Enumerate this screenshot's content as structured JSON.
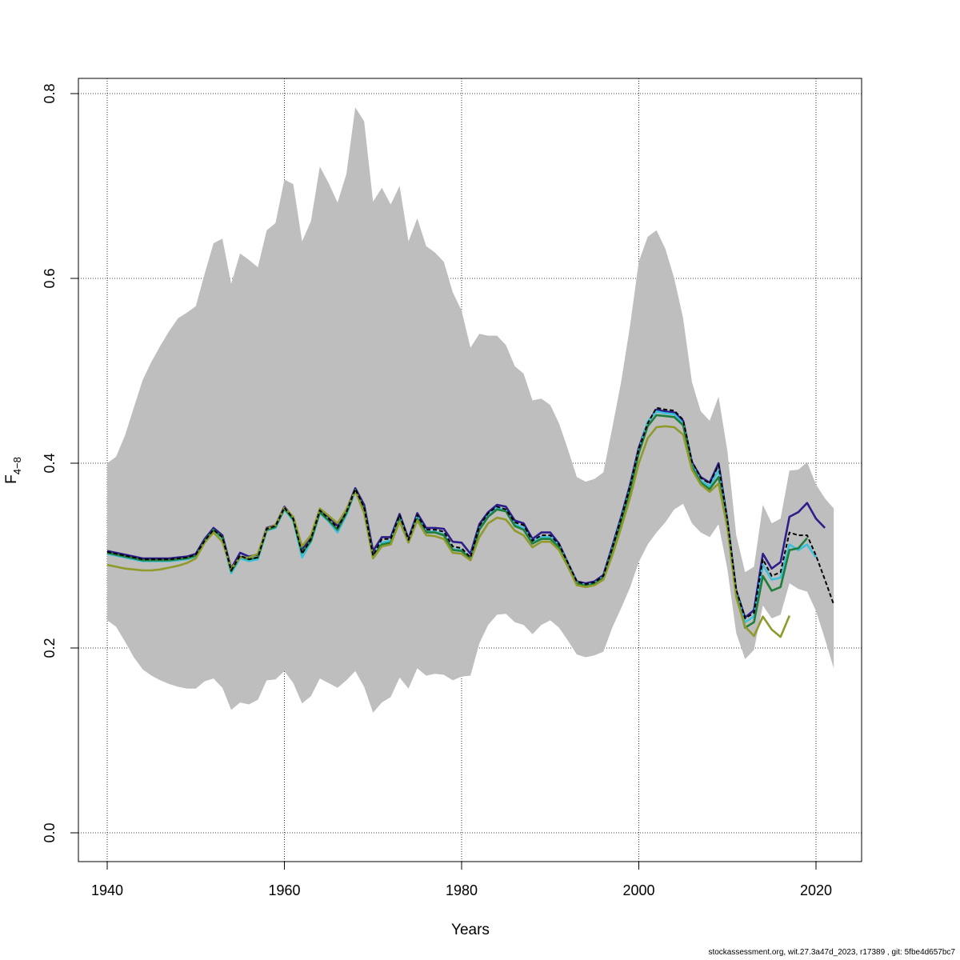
{
  "chart_data": {
    "type": "line",
    "xlabel": "Years",
    "ylabel": "F",
    "ylabel_subscript": "4−8",
    "xlim": [
      1940,
      2022
    ],
    "ylim": [
      0,
      0.8
    ],
    "x_ticks": [
      1940,
      1960,
      1980,
      2000,
      2020
    ],
    "y_ticks": [
      0.0,
      0.2,
      0.4,
      0.6,
      0.8
    ],
    "y_tick_labels": [
      "0.0",
      "0.2",
      "0.4",
      "0.6",
      "0.8"
    ],
    "grid": true,
    "band_color": "#bebebe",
    "confidence_band": {
      "x": [
        1940,
        1941,
        1942,
        1943,
        1944,
        1945,
        1946,
        1947,
        1948,
        1949,
        1950,
        1951,
        1952,
        1953,
        1954,
        1955,
        1956,
        1957,
        1958,
        1959,
        1960,
        1961,
        1962,
        1963,
        1964,
        1965,
        1966,
        1967,
        1968,
        1969,
        1970,
        1971,
        1972,
        1973,
        1974,
        1975,
        1976,
        1977,
        1978,
        1979,
        1980,
        1981,
        1982,
        1983,
        1984,
        1985,
        1986,
        1987,
        1988,
        1989,
        1990,
        1991,
        1992,
        1993,
        1994,
        1995,
        1996,
        1997,
        1998,
        1999,
        2000,
        2001,
        2002,
        2003,
        2004,
        2005,
        2006,
        2007,
        2008,
        2009,
        2010,
        2011,
        2012,
        2013,
        2014,
        2015,
        2016,
        2017,
        2018,
        2019,
        2020,
        2021,
        2022
      ],
      "upper": [
        0.4,
        0.407,
        0.43,
        0.46,
        0.49,
        0.51,
        0.527,
        0.543,
        0.557,
        0.563,
        0.57,
        0.605,
        0.638,
        0.643,
        0.594,
        0.627,
        0.62,
        0.612,
        0.652,
        0.66,
        0.707,
        0.702,
        0.64,
        0.662,
        0.721,
        0.703,
        0.682,
        0.713,
        0.785,
        0.77,
        0.683,
        0.698,
        0.68,
        0.7,
        0.64,
        0.665,
        0.635,
        0.628,
        0.618,
        0.585,
        0.565,
        0.525,
        0.54,
        0.538,
        0.538,
        0.528,
        0.505,
        0.497,
        0.468,
        0.47,
        0.463,
        0.443,
        0.415,
        0.385,
        0.38,
        0.383,
        0.39,
        0.438,
        0.488,
        0.548,
        0.618,
        0.645,
        0.652,
        0.632,
        0.6,
        0.557,
        0.488,
        0.456,
        0.446,
        0.472,
        0.413,
        0.322,
        0.282,
        0.288,
        0.355,
        0.335,
        0.34,
        0.392,
        0.393,
        0.401,
        0.377,
        0.362,
        0.351
      ],
      "lower": [
        0.23,
        0.223,
        0.207,
        0.19,
        0.177,
        0.17,
        0.165,
        0.161,
        0.158,
        0.156,
        0.156,
        0.164,
        0.167,
        0.157,
        0.133,
        0.141,
        0.139,
        0.144,
        0.165,
        0.166,
        0.175,
        0.162,
        0.14,
        0.148,
        0.167,
        0.162,
        0.157,
        0.165,
        0.175,
        0.158,
        0.13,
        0.141,
        0.147,
        0.168,
        0.156,
        0.178,
        0.17,
        0.172,
        0.171,
        0.165,
        0.169,
        0.17,
        0.205,
        0.225,
        0.236,
        0.237,
        0.228,
        0.225,
        0.215,
        0.225,
        0.23,
        0.222,
        0.208,
        0.193,
        0.19,
        0.192,
        0.196,
        0.222,
        0.243,
        0.265,
        0.293,
        0.312,
        0.325,
        0.336,
        0.35,
        0.356,
        0.335,
        0.325,
        0.32,
        0.334,
        0.285,
        0.216,
        0.188,
        0.198,
        0.246,
        0.232,
        0.236,
        0.27,
        0.264,
        0.261,
        0.24,
        0.21,
        0.178
      ]
    },
    "series": [
      {
        "color": "#000000",
        "dashed": true,
        "x": [
          1940,
          1941,
          1942,
          1943,
          1944,
          1945,
          1946,
          1947,
          1948,
          1949,
          1950,
          1951,
          1952,
          1953,
          1954,
          1955,
          1956,
          1957,
          1958,
          1959,
          1960,
          1961,
          1962,
          1963,
          1964,
          1965,
          1966,
          1967,
          1968,
          1969,
          1970,
          1971,
          1972,
          1973,
          1974,
          1975,
          1976,
          1977,
          1978,
          1979,
          1980,
          1981,
          1982,
          1983,
          1984,
          1985,
          1986,
          1987,
          1988,
          1989,
          1990,
          1991,
          1992,
          1993,
          1994,
          1995,
          1996,
          1997,
          1998,
          1999,
          2000,
          2001,
          2002,
          2003,
          2004,
          2005,
          2006,
          2007,
          2008,
          2009,
          2010,
          2011,
          2012,
          2013,
          2014,
          2015,
          2016,
          2017,
          2018,
          2019,
          2020,
          2021,
          2022
        ],
        "y": [
          0.304,
          0.302,
          0.3,
          0.298,
          0.296,
          0.296,
          0.296,
          0.296,
          0.297,
          0.298,
          0.301,
          0.316,
          0.328,
          0.32,
          0.284,
          0.3,
          0.296,
          0.298,
          0.329,
          0.332,
          0.352,
          0.34,
          0.302,
          0.318,
          0.349,
          0.34,
          0.33,
          0.347,
          0.372,
          0.352,
          0.3,
          0.318,
          0.318,
          0.344,
          0.317,
          0.344,
          0.328,
          0.328,
          0.326,
          0.31,
          0.308,
          0.298,
          0.332,
          0.346,
          0.353,
          0.35,
          0.336,
          0.333,
          0.316,
          0.322,
          0.322,
          0.312,
          0.292,
          0.272,
          0.269,
          0.271,
          0.278,
          0.308,
          0.34,
          0.374,
          0.415,
          0.443,
          0.46,
          0.458,
          0.457,
          0.447,
          0.402,
          0.384,
          0.378,
          0.398,
          0.338,
          0.263,
          0.232,
          0.238,
          0.296,
          0.278,
          0.282,
          0.325,
          0.322,
          0.322,
          0.3,
          0.274,
          0.247
        ]
      },
      {
        "color": "#2e1e8c",
        "dashed": false,
        "x": [
          1940,
          1941,
          1942,
          1943,
          1944,
          1945,
          1946,
          1947,
          1948,
          1949,
          1950,
          1951,
          1952,
          1953,
          1954,
          1955,
          1956,
          1957,
          1958,
          1959,
          1960,
          1961,
          1962,
          1963,
          1964,
          1965,
          1966,
          1967,
          1968,
          1969,
          1970,
          1971,
          1972,
          1973,
          1974,
          1975,
          1976,
          1977,
          1978,
          1979,
          1980,
          1981,
          1982,
          1983,
          1984,
          1985,
          1986,
          1987,
          1988,
          1989,
          1990,
          1991,
          1992,
          1993,
          1994,
          1995,
          1996,
          1997,
          1998,
          1999,
          2000,
          2001,
          2002,
          2003,
          2004,
          2005,
          2006,
          2007,
          2008,
          2009,
          2010,
          2011,
          2012,
          2013,
          2014,
          2015,
          2016,
          2017,
          2018,
          2019,
          2020,
          2021
        ],
        "y": [
          0.305,
          0.303,
          0.301,
          0.299,
          0.297,
          0.297,
          0.297,
          0.297,
          0.298,
          0.299,
          0.302,
          0.318,
          0.33,
          0.322,
          0.286,
          0.303,
          0.299,
          0.301,
          0.33,
          0.333,
          0.353,
          0.341,
          0.307,
          0.32,
          0.35,
          0.342,
          0.332,
          0.349,
          0.373,
          0.355,
          0.305,
          0.32,
          0.32,
          0.345,
          0.318,
          0.346,
          0.33,
          0.33,
          0.329,
          0.315,
          0.314,
          0.302,
          0.334,
          0.347,
          0.355,
          0.353,
          0.338,
          0.335,
          0.318,
          0.325,
          0.325,
          0.313,
          0.292,
          0.272,
          0.27,
          0.272,
          0.279,
          0.31,
          0.342,
          0.376,
          0.417,
          0.444,
          0.458,
          0.456,
          0.455,
          0.446,
          0.401,
          0.385,
          0.379,
          0.4,
          0.338,
          0.262,
          0.233,
          0.241,
          0.302,
          0.286,
          0.293,
          0.342,
          0.347,
          0.357,
          0.34,
          0.33
        ]
      },
      {
        "color": "#3bc0dc",
        "dashed": false,
        "x": [
          1940,
          1941,
          1942,
          1943,
          1944,
          1945,
          1946,
          1947,
          1948,
          1949,
          1950,
          1951,
          1952,
          1953,
          1954,
          1955,
          1956,
          1957,
          1958,
          1959,
          1960,
          1961,
          1962,
          1963,
          1964,
          1965,
          1966,
          1967,
          1968,
          1969,
          1970,
          1971,
          1972,
          1973,
          1974,
          1975,
          1976,
          1977,
          1978,
          1979,
          1980,
          1981,
          1982,
          1983,
          1984,
          1985,
          1986,
          1987,
          1988,
          1989,
          1990,
          1991,
          1992,
          1993,
          1994,
          1995,
          1996,
          1997,
          1998,
          1999,
          2000,
          2001,
          2002,
          2003,
          2004,
          2005,
          2006,
          2007,
          2008,
          2009,
          2010,
          2011,
          2012,
          2013,
          2014,
          2015,
          2016,
          2017,
          2018,
          2019,
          2020
        ],
        "y": [
          0.302,
          0.3,
          0.298,
          0.296,
          0.294,
          0.294,
          0.294,
          0.294,
          0.295,
          0.296,
          0.299,
          0.315,
          0.327,
          0.318,
          0.281,
          0.297,
          0.294,
          0.296,
          0.327,
          0.33,
          0.35,
          0.338,
          0.298,
          0.315,
          0.346,
          0.337,
          0.325,
          0.344,
          0.37,
          0.35,
          0.298,
          0.314,
          0.316,
          0.341,
          0.315,
          0.342,
          0.326,
          0.326,
          0.323,
          0.307,
          0.306,
          0.297,
          0.329,
          0.343,
          0.352,
          0.349,
          0.334,
          0.33,
          0.315,
          0.32,
          0.32,
          0.311,
          0.291,
          0.271,
          0.268,
          0.27,
          0.277,
          0.307,
          0.339,
          0.372,
          0.413,
          0.445,
          0.456,
          0.454,
          0.453,
          0.443,
          0.398,
          0.381,
          0.375,
          0.392,
          0.336,
          0.26,
          0.228,
          0.234,
          0.29,
          0.274,
          0.276,
          0.312,
          0.306,
          0.312,
          0.298
        ]
      },
      {
        "color": "#1f7e3a",
        "dashed": false,
        "x": [
          1940,
          1941,
          1942,
          1943,
          1944,
          1945,
          1946,
          1947,
          1948,
          1949,
          1950,
          1951,
          1952,
          1953,
          1954,
          1955,
          1956,
          1957,
          1958,
          1959,
          1960,
          1961,
          1962,
          1963,
          1964,
          1965,
          1966,
          1967,
          1968,
          1969,
          1970,
          1971,
          1972,
          1973,
          1974,
          1975,
          1976,
          1977,
          1978,
          1979,
          1980,
          1981,
          1982,
          1983,
          1984,
          1985,
          1986,
          1987,
          1988,
          1989,
          1990,
          1991,
          1992,
          1993,
          1994,
          1995,
          1996,
          1997,
          1998,
          1999,
          2000,
          2001,
          2002,
          2003,
          2004,
          2005,
          2006,
          2007,
          2008,
          2009,
          2010,
          2011,
          2012,
          2013,
          2014,
          2015,
          2016,
          2017,
          2018,
          2019
        ],
        "y": [
          0.303,
          0.301,
          0.299,
          0.297,
          0.295,
          0.295,
          0.295,
          0.295,
          0.296,
          0.297,
          0.3,
          0.316,
          0.328,
          0.32,
          0.283,
          0.299,
          0.296,
          0.298,
          0.328,
          0.331,
          0.351,
          0.339,
          0.303,
          0.316,
          0.347,
          0.338,
          0.328,
          0.346,
          0.371,
          0.351,
          0.299,
          0.312,
          0.314,
          0.339,
          0.315,
          0.34,
          0.325,
          0.325,
          0.322,
          0.306,
          0.305,
          0.296,
          0.328,
          0.342,
          0.35,
          0.348,
          0.332,
          0.328,
          0.313,
          0.318,
          0.318,
          0.309,
          0.29,
          0.27,
          0.267,
          0.269,
          0.276,
          0.305,
          0.337,
          0.37,
          0.411,
          0.44,
          0.452,
          0.451,
          0.45,
          0.441,
          0.396,
          0.379,
          0.372,
          0.385,
          0.334,
          0.258,
          0.222,
          0.228,
          0.278,
          0.262,
          0.266,
          0.306,
          0.308,
          0.319
        ]
      },
      {
        "color": "#8f9a2a",
        "dashed": false,
        "x": [
          1940,
          1941,
          1942,
          1943,
          1944,
          1945,
          1946,
          1947,
          1948,
          1949,
          1950,
          1951,
          1952,
          1953,
          1954,
          1955,
          1956,
          1957,
          1958,
          1959,
          1960,
          1961,
          1962,
          1963,
          1964,
          1965,
          1966,
          1967,
          1968,
          1969,
          1970,
          1971,
          1972,
          1973,
          1974,
          1975,
          1976,
          1977,
          1978,
          1979,
          1980,
          1981,
          1982,
          1983,
          1984,
          1985,
          1986,
          1987,
          1988,
          1989,
          1990,
          1991,
          1992,
          1993,
          1994,
          1995,
          1996,
          1997,
          1998,
          1999,
          2000,
          2001,
          2002,
          2003,
          2004,
          2005,
          2006,
          2007,
          2008,
          2009,
          2010,
          2011,
          2012,
          2013,
          2014,
          2015,
          2016,
          2017
        ],
        "y": [
          0.29,
          0.288,
          0.286,
          0.285,
          0.284,
          0.284,
          0.285,
          0.287,
          0.289,
          0.292,
          0.297,
          0.314,
          0.325,
          0.315,
          0.286,
          0.298,
          0.298,
          0.302,
          0.329,
          0.333,
          0.352,
          0.342,
          0.31,
          0.322,
          0.351,
          0.343,
          0.335,
          0.35,
          0.37,
          0.346,
          0.297,
          0.31,
          0.312,
          0.337,
          0.314,
          0.338,
          0.322,
          0.321,
          0.318,
          0.303,
          0.302,
          0.295,
          0.32,
          0.335,
          0.341,
          0.339,
          0.327,
          0.322,
          0.309,
          0.315,
          0.315,
          0.306,
          0.288,
          0.268,
          0.266,
          0.268,
          0.274,
          0.3,
          0.33,
          0.362,
          0.4,
          0.427,
          0.439,
          0.44,
          0.439,
          0.431,
          0.393,
          0.377,
          0.369,
          0.378,
          0.33,
          0.255,
          0.223,
          0.213,
          0.234,
          0.22,
          0.212,
          0.235
        ]
      }
    ]
  },
  "footer_text": "stockassessment.org, wit.27.3a47d_2023, r17389 , git: 5fbe4d657bc7"
}
